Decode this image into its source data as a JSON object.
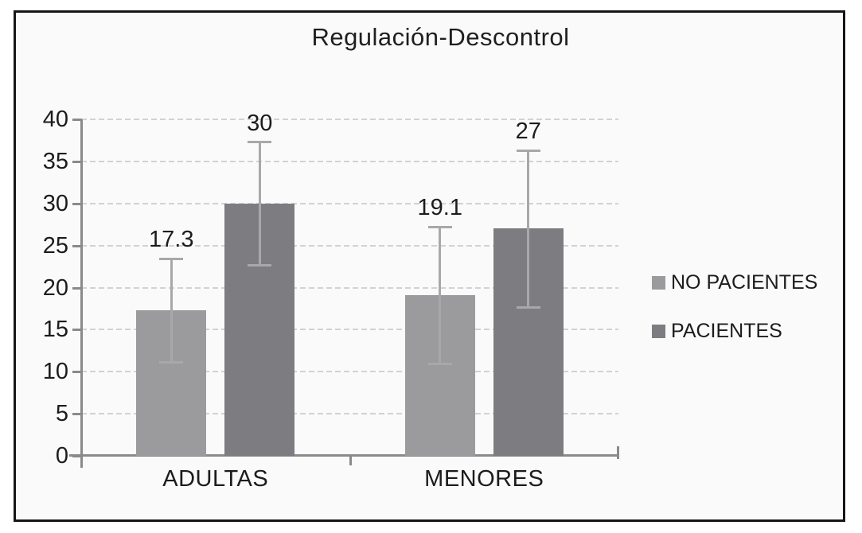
{
  "figure": {
    "background": "#fafafa",
    "frame_border_color": "#161616"
  },
  "chart_data": {
    "type": "bar",
    "title": "Regulación-Descontrol",
    "categories": [
      "ADULTAS",
      "MENORES"
    ],
    "series": [
      {
        "name": "NO PACIENTES",
        "color": "#9b9b9d",
        "values": [
          17.3,
          19.1
        ],
        "value_labels": [
          "17.3",
          "19.1"
        ],
        "errors": [
          6.2,
          8.2
        ]
      },
      {
        "name": "PACIENTES",
        "color": "#7d7d81",
        "values": [
          30,
          27
        ],
        "value_labels": [
          "30",
          "27"
        ],
        "errors": [
          7.4,
          9.4
        ]
      }
    ],
    "ylim": [
      0,
      40
    ],
    "yticks": [
      0,
      5,
      10,
      15,
      20,
      25,
      30,
      35,
      40
    ],
    "grid": "horizontal-dashed",
    "error_bars": true,
    "legend_position": "right",
    "colors": {
      "grid": "#d2d2d2",
      "axis": "#8a8a8a",
      "error_bar": "#a8a8aa",
      "text": "#1c1c1c"
    }
  }
}
